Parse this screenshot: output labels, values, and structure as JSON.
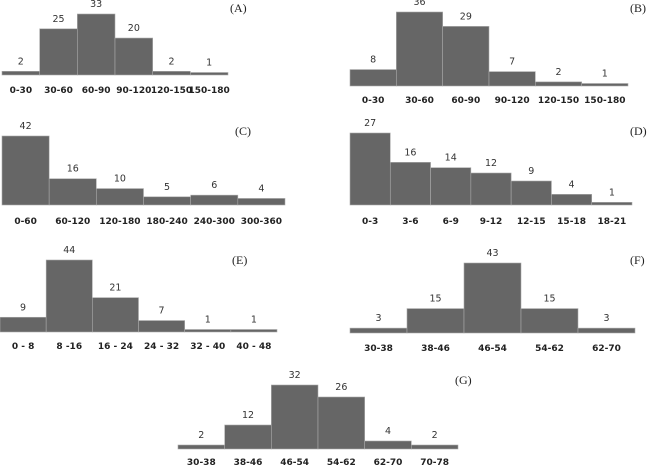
{
  "chart_data": [
    {
      "type": "bar",
      "panel_label": "(A)",
      "categories": [
        "0-30",
        "30-60",
        "60-90",
        "90-120",
        "120-150",
        "150-180"
      ],
      "values": [
        2,
        25,
        33,
        20,
        2,
        1
      ],
      "bar_color": "#666666"
    },
    {
      "type": "bar",
      "panel_label": "(B)",
      "categories": [
        "0-30",
        "30-60",
        "60-90",
        "90-120",
        "120-150",
        "150-180"
      ],
      "values": [
        8,
        36,
        29,
        7,
        2,
        1
      ],
      "bar_color": "#666666"
    },
    {
      "type": "bar",
      "panel_label": "(C)",
      "categories": [
        "0-60",
        "60-120",
        "120-180",
        "180-240",
        "240-300",
        "300-360"
      ],
      "values": [
        42,
        16,
        10,
        5,
        6,
        4
      ],
      "bar_color": "#666666"
    },
    {
      "type": "bar",
      "panel_label": "(D)",
      "categories": [
        "0-3",
        "3-6",
        "6-9",
        "9-12",
        "12-15",
        "15-18",
        "18-21"
      ],
      "values": [
        27,
        16,
        14,
        12,
        9,
        4,
        1
      ],
      "bar_color": "#666666"
    },
    {
      "type": "bar",
      "panel_label": "(E)",
      "categories": [
        "0 - 8",
        "8 -16",
        "16 - 24",
        "24 - 32",
        "32 - 40",
        "40 - 48"
      ],
      "values": [
        9,
        44,
        21,
        7,
        1,
        1
      ],
      "bar_color": "#666666"
    },
    {
      "type": "bar",
      "panel_label": "(F)",
      "categories": [
        "30-38",
        "38-46",
        "46-54",
        "54-62",
        "62-70"
      ],
      "values": [
        3,
        15,
        43,
        15,
        3
      ],
      "bar_color": "#666666"
    },
    {
      "type": "bar",
      "panel_label": "(G)",
      "categories": [
        "30-38",
        "38-46",
        "46-54",
        "54-62",
        "62-70",
        "70-78"
      ],
      "values": [
        2,
        12,
        32,
        26,
        4,
        2
      ],
      "bar_color": "#666666"
    }
  ]
}
